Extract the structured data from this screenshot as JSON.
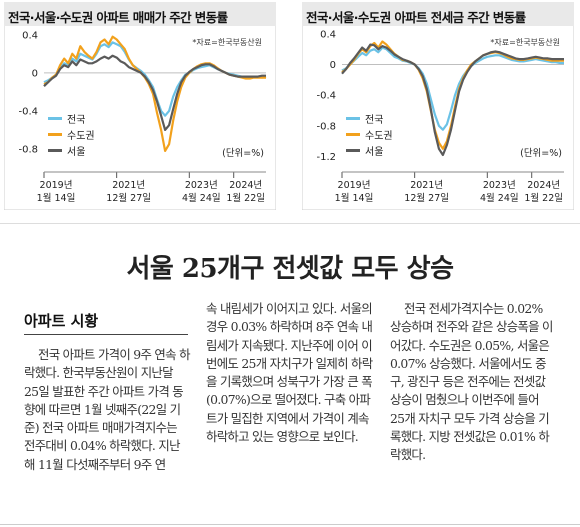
{
  "charts": [
    {
      "title": "전국·서울·수도권 아파트 매매가 주간 변동률",
      "source": "*자료=한국부동산원",
      "unit": "(단위=%)",
      "legend": [
        {
          "name": "전국",
          "color": "#6bc2e6"
        },
        {
          "name": "수도권",
          "color": "#f2a11c"
        },
        {
          "name": "서울",
          "color": "#5a5a5a"
        }
      ],
      "y_ticks": [
        "0.4",
        "0",
        "-0.4",
        "-0.8"
      ],
      "x_ticks": [
        {
          "year": "2019년",
          "date": "1월 14일"
        },
        {
          "year": "2021년",
          "date": "12월 27일"
        },
        {
          "year": "2023년",
          "date": "4월 24일"
        },
        {
          "year": "2024년",
          "date": "1월 22일"
        }
      ],
      "chart_data": {
        "type": "line",
        "ylim": [
          -1.0,
          0.45
        ],
        "x_count": 56,
        "series": [
          {
            "name": "전국",
            "values": [
              -0.1,
              -0.08,
              -0.05,
              -0.02,
              0.05,
              0.1,
              0.08,
              0.15,
              0.12,
              0.2,
              0.18,
              0.16,
              0.14,
              0.2,
              0.28,
              0.3,
              0.27,
              0.32,
              0.3,
              0.28,
              0.22,
              0.14,
              0.08,
              0.05,
              0.02,
              -0.02,
              -0.08,
              -0.15,
              -0.28,
              -0.4,
              -0.45,
              -0.4,
              -0.25,
              -0.15,
              -0.08,
              -0.02,
              0.0,
              0.03,
              0.05,
              0.06,
              0.07,
              0.08,
              0.06,
              0.04,
              0.02,
              0.0,
              -0.01,
              -0.02,
              -0.03,
              -0.04,
              -0.04,
              -0.05,
              -0.04,
              -0.04,
              -0.05,
              -0.04
            ]
          },
          {
            "name": "수도권",
            "values": [
              -0.12,
              -0.1,
              -0.05,
              -0.02,
              0.08,
              0.15,
              0.1,
              0.2,
              0.15,
              0.28,
              0.22,
              0.18,
              0.15,
              0.22,
              0.32,
              0.35,
              0.3,
              0.38,
              0.35,
              0.3,
              0.25,
              0.15,
              0.08,
              0.04,
              0.0,
              -0.05,
              -0.12,
              -0.22,
              -0.42,
              -0.6,
              -0.82,
              -0.75,
              -0.5,
              -0.3,
              -0.15,
              -0.05,
              0.0,
              0.04,
              0.07,
              0.09,
              0.1,
              0.1,
              0.08,
              0.05,
              0.02,
              0.0,
              -0.02,
              -0.03,
              -0.04,
              -0.05,
              -0.06,
              -0.06,
              -0.05,
              -0.05,
              -0.05,
              -0.05
            ]
          },
          {
            "name": "서울",
            "values": [
              -0.14,
              -0.1,
              -0.06,
              -0.03,
              0.04,
              0.08,
              0.06,
              0.12,
              0.08,
              0.14,
              0.12,
              0.1,
              0.1,
              0.12,
              0.15,
              0.17,
              0.15,
              0.18,
              0.16,
              0.12,
              0.1,
              0.06,
              0.04,
              0.02,
              0.0,
              -0.04,
              -0.1,
              -0.18,
              -0.3,
              -0.45,
              -0.6,
              -0.55,
              -0.38,
              -0.22,
              -0.1,
              -0.03,
              0.01,
              0.04,
              0.06,
              0.08,
              0.09,
              0.09,
              0.07,
              0.04,
              0.02,
              0.0,
              -0.02,
              -0.03,
              -0.04,
              -0.04,
              -0.04,
              -0.04,
              -0.04,
              -0.04,
              -0.03,
              -0.03
            ]
          }
        ]
      }
    },
    {
      "title": "전국·서울·수도권 아파트 전세금 주간 변동률",
      "source": "*자료=한국부동산원",
      "unit": "(단위=%)",
      "legend": [
        {
          "name": "전국",
          "color": "#6bc2e6"
        },
        {
          "name": "수도권",
          "color": "#f2a11c"
        },
        {
          "name": "서울",
          "color": "#5a5a5a"
        }
      ],
      "y_ticks": [
        "0.4",
        "0",
        "-0.4",
        "-0.8",
        "-1.2"
      ],
      "x_ticks": [
        {
          "year": "2019년",
          "date": "1월 14일"
        },
        {
          "year": "2021년",
          "date": "12월 27일"
        },
        {
          "year": "2023년",
          "date": "4월 24일"
        },
        {
          "year": "2024년",
          "date": "1월 22일"
        }
      ],
      "chart_data": {
        "type": "line",
        "ylim": [
          -1.35,
          0.45
        ],
        "x_count": 56,
        "series": [
          {
            "name": "전국",
            "values": [
              -0.08,
              -0.05,
              0.0,
              0.05,
              0.1,
              0.15,
              0.12,
              0.18,
              0.2,
              0.16,
              0.22,
              0.2,
              0.15,
              0.1,
              0.08,
              0.05,
              0.04,
              0.02,
              0.0,
              -0.05,
              -0.12,
              -0.25,
              -0.45,
              -0.65,
              -0.8,
              -0.85,
              -0.78,
              -0.6,
              -0.4,
              -0.25,
              -0.15,
              -0.08,
              -0.02,
              0.02,
              0.05,
              0.08,
              0.1,
              0.11,
              0.12,
              0.12,
              0.1,
              0.08,
              0.06,
              0.05,
              0.04,
              0.04,
              0.05,
              0.06,
              0.07,
              0.06,
              0.05,
              0.04,
              0.03,
              0.03,
              0.02,
              0.02
            ]
          },
          {
            "name": "수도권",
            "values": [
              -0.1,
              -0.06,
              0.0,
              0.06,
              0.14,
              0.2,
              0.16,
              0.24,
              0.28,
              0.22,
              0.3,
              0.26,
              0.2,
              0.14,
              0.1,
              0.06,
              0.05,
              0.03,
              0.0,
              -0.07,
              -0.18,
              -0.35,
              -0.6,
              -0.85,
              -1.02,
              -1.1,
              -1.0,
              -0.8,
              -0.55,
              -0.32,
              -0.18,
              -0.08,
              0.0,
              0.04,
              0.08,
              0.12,
              0.14,
              0.15,
              0.16,
              0.15,
              0.13,
              0.1,
              0.08,
              0.07,
              0.06,
              0.06,
              0.07,
              0.08,
              0.09,
              0.08,
              0.07,
              0.06,
              0.05,
              0.05,
              0.05,
              0.05
            ]
          },
          {
            "name": "서울",
            "values": [
              -0.12,
              -0.06,
              0.02,
              0.08,
              0.15,
              0.22,
              0.18,
              0.26,
              0.25,
              0.2,
              0.24,
              0.22,
              0.18,
              0.13,
              0.1,
              0.07,
              0.05,
              0.03,
              0.0,
              -0.06,
              -0.15,
              -0.32,
              -0.58,
              -0.88,
              -1.1,
              -1.18,
              -1.05,
              -0.85,
              -0.6,
              -0.35,
              -0.2,
              -0.1,
              -0.02,
              0.04,
              0.08,
              0.12,
              0.14,
              0.16,
              0.17,
              0.16,
              0.14,
              0.12,
              0.1,
              0.08,
              0.07,
              0.07,
              0.08,
              0.09,
              0.1,
              0.09,
              0.08,
              0.08,
              0.07,
              0.07,
              0.07,
              0.07
            ]
          }
        ]
      }
    }
  ],
  "article": {
    "headline": "서울 25개구 전셋값 모두 상승",
    "section_heading": "아파트 시황",
    "col1": "전국 아파트 가격이 9주 연속 하락했다. 한국부동산원이 지난달 25일 발표한 주간 아파트 가격 동향에 따르면 1월 넷째주(22일 기준) 전국 아파트 매매가격지수는 전주대비 0.04% 하락했다. 지난해 11월 다섯째주부터 9주 연",
    "col2": "속 내림세가 이어지고 있다. 서울의 경우 0.03% 하락하며 8주 연속 내림세가 지속됐다. 지난주에 이어 이번에도 25개 자치구가 일제히 하락을 기록했으며 성북구가 가장 큰 폭(0.07%)으로 떨어졌다. 구축 아파트가 밀집한 지역에서 가격이 계속 하락하고 있는 영향으로 보인다.",
    "col3": "전국 전세가격지수는 0.02% 상승하며 전주와 같은 상승폭을 이어갔다. 수도권은 0.05%, 서울은 0.07% 상승했다. 서울에서도 중구, 광진구 등은 전주에는 전셋값 상승이 멈췄으나 이번주에 들어 25개 자치구 모두 가격 상승을 기록했다. 지방 전셋값은 0.01% 하락했다."
  }
}
